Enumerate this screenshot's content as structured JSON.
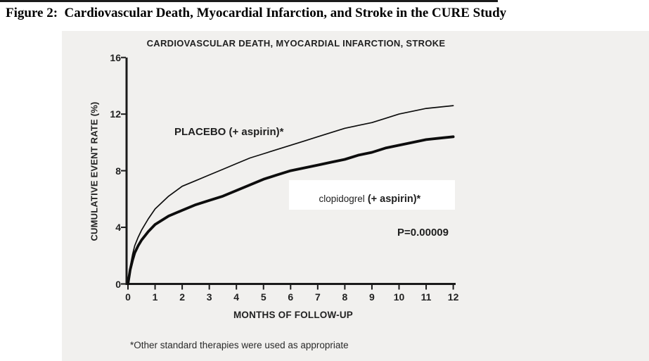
{
  "page": {
    "figure_title": "Figure 2:  Cardiovascular Death, Myocardial Infarction, and Stroke in the CURE Study",
    "footnote": "*Other standard therapies were used as appropriate"
  },
  "chart_data": {
    "type": "line",
    "title": "CARDIOVASCULAR DEATH, MYOCARDIAL INFARCTION, STROKE",
    "xlabel": "MONTHS OF FOLLOW-UP",
    "ylabel": "CUMULATIVE EVENT RATE (%)",
    "xlim": [
      0,
      12
    ],
    "ylim": [
      0,
      16
    ],
    "x_ticks": [
      0,
      1,
      2,
      3,
      4,
      5,
      6,
      7,
      8,
      9,
      10,
      11,
      12
    ],
    "y_ticks": [
      0,
      4,
      8,
      12,
      16
    ],
    "grid": false,
    "legend_position": "inline-annotations",
    "labels": {
      "placebo": "PLACEBO (+ aspirin)*",
      "clopidogrel_drug": "clopidogrel",
      "clopidogrel_suffix": " (+ aspirin)*",
      "p_value": "P=0.00009"
    },
    "line_color": "#0d0d0d",
    "series": [
      {
        "name": "PLACEBO (+ aspirin)*",
        "line_style": "thin",
        "x": [
          0,
          0.08,
          0.17,
          0.25,
          0.375,
          0.5,
          0.75,
          1,
          1.5,
          2,
          2.5,
          3,
          3.5,
          4,
          4.5,
          5,
          5.5,
          6,
          6.5,
          7,
          7.5,
          8,
          8.5,
          9,
          9.5,
          10,
          10.5,
          11,
          11.5,
          12
        ],
        "y": [
          0,
          1.2,
          2.1,
          2.7,
          3.3,
          3.8,
          4.6,
          5.3,
          6.2,
          6.9,
          7.3,
          7.7,
          8.1,
          8.5,
          8.9,
          9.2,
          9.5,
          9.8,
          10.1,
          10.4,
          10.7,
          11.0,
          11.2,
          11.4,
          11.7,
          12.0,
          12.2,
          12.4,
          12.5,
          12.6
        ]
      },
      {
        "name": "clopidogrel (+ aspirin)*",
        "line_style": "thick",
        "x": [
          0,
          0.08,
          0.17,
          0.25,
          0.375,
          0.5,
          0.75,
          1,
          1.5,
          2,
          2.5,
          3,
          3.5,
          4,
          4.5,
          5,
          5.5,
          6,
          6.5,
          7,
          7.5,
          8,
          8.5,
          9,
          9.5,
          10,
          10.5,
          11,
          11.5,
          12
        ],
        "y": [
          0,
          1.0,
          1.7,
          2.2,
          2.7,
          3.1,
          3.7,
          4.2,
          4.8,
          5.2,
          5.6,
          5.9,
          6.2,
          6.6,
          7.0,
          7.4,
          7.7,
          8.0,
          8.2,
          8.4,
          8.6,
          8.8,
          9.1,
          9.3,
          9.6,
          9.8,
          10.0,
          10.2,
          10.3,
          10.4
        ]
      }
    ]
  }
}
